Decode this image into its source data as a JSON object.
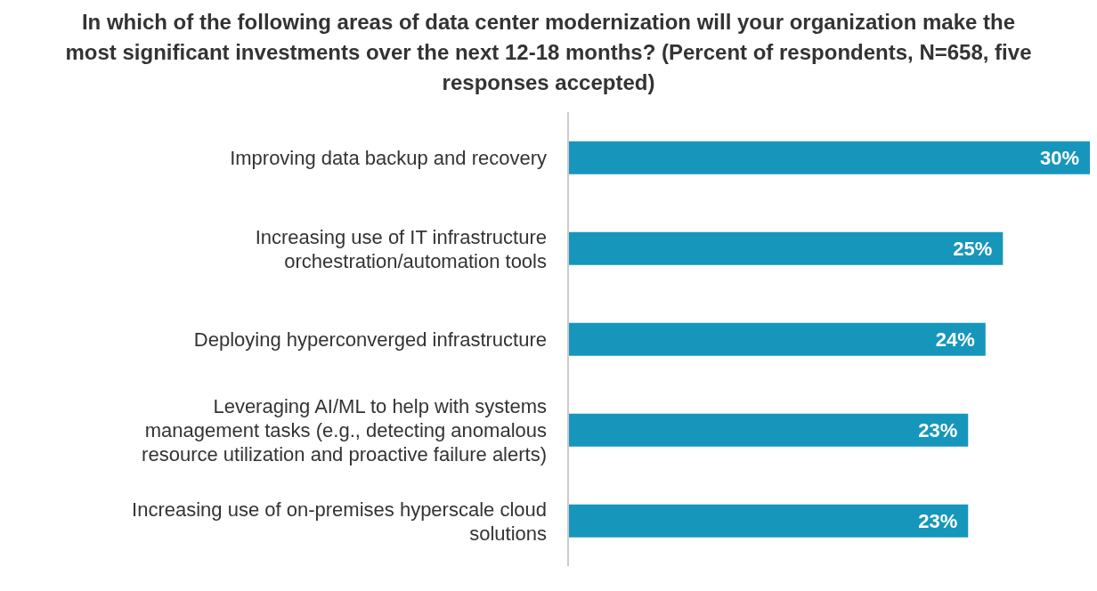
{
  "chart_data": {
    "type": "bar",
    "orientation": "horizontal",
    "title": "In which of the following areas of data center modernization will your organization make the most significant investments over the next 12-18 months? (Percent of respondents, N=658, five responses accepted)",
    "categories": [
      "Improving data backup and recovery",
      "Increasing use of IT infrastructure orchestration/automation tools",
      "Deploying hyperconverged infrastructure",
      "Leveraging AI/ML to help with systems management tasks (e.g., detecting anomalous resource utilization and proactive failure alerts)",
      "Increasing use of on-premises hyperscale cloud solutions"
    ],
    "values": [
      30,
      25,
      24,
      23,
      23
    ],
    "value_labels": [
      "30%",
      "25%",
      "24%",
      "23%",
      "23%"
    ],
    "color": "#1696bb"
  }
}
